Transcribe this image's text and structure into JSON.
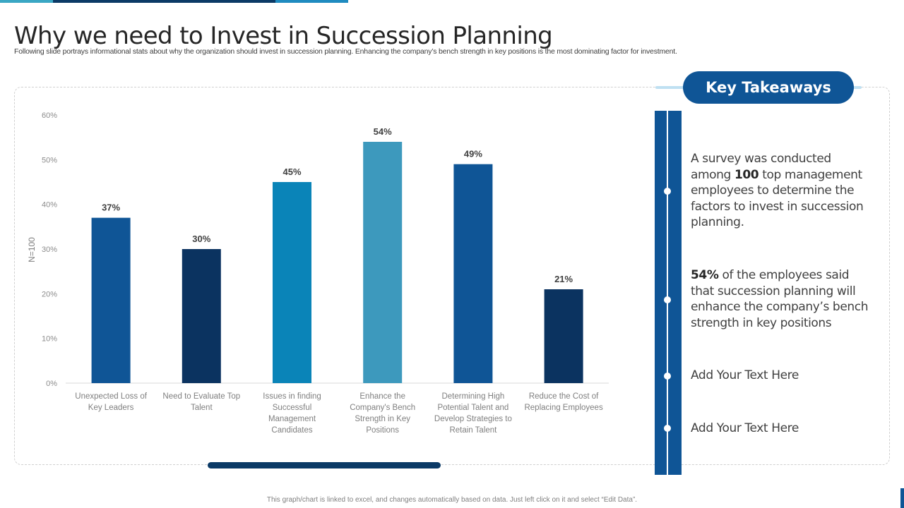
{
  "slide": {
    "title": "Why we need to Invest in Succession Planning",
    "subtitle": "Following slide portrays informational stats about why the organization should invest in succession planning. Enhancing the company’s bench strength in key positions is the most dominating factor for investment.",
    "footer": "This graph/chart is linked to excel, and changes automatically based on data. Just left click on it and select “Edit Data”."
  },
  "takeaways": {
    "heading": "Key Takeaways",
    "items": [
      {
        "bold": "",
        "pre": "A survey was conducted among ",
        "boldmid": "100",
        "post": " top management employees to determine the factors to invest in succession planning."
      },
      {
        "boldmid": "54%",
        "post": " of the employees said that succession planning will enhance the company’s bench strength in key positions"
      },
      {
        "post": "Add Your Text Here"
      },
      {
        "post": "Add Your Text Here"
      }
    ]
  },
  "chart_data": {
    "type": "bar",
    "title": "",
    "xlabel": "",
    "ylabel": "N=100",
    "ylim": [
      0,
      60
    ],
    "yticks": [
      "0%",
      "10%",
      "20%",
      "30%",
      "40%",
      "50%",
      "60%"
    ],
    "ytick_values": [
      0,
      10,
      20,
      30,
      40,
      50,
      60
    ],
    "grid": false,
    "categories": [
      [
        "Unexpected Loss of",
        "Key Leaders"
      ],
      [
        "Need to Evaluate Top",
        "Talent"
      ],
      [
        "Issues in finding",
        "Successful",
        "Management",
        "Candidates"
      ],
      [
        "Enhance the",
        "Company's Bench",
        "Strength in Key",
        "Positions"
      ],
      [
        "Determining High",
        "Potential Talent and",
        "Develop Strategies to",
        "Retain Talent"
      ],
      [
        "Reduce the Cost of",
        "Replacing Employees"
      ]
    ],
    "values": [
      37,
      30,
      45,
      54,
      49,
      21
    ],
    "labels": [
      "37%",
      "30%",
      "45%",
      "54%",
      "49%",
      "21%"
    ],
    "colors": [
      "#0f5596",
      "#0b3360",
      "#0a84b8",
      "#3d99bd",
      "#0f5596",
      "#0b3360"
    ]
  }
}
